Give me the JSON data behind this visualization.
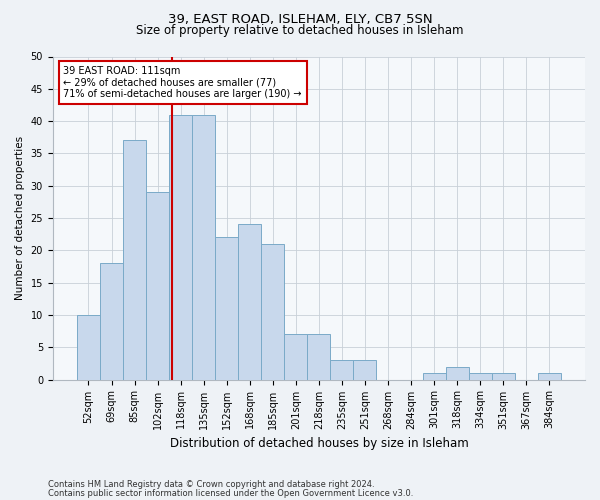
{
  "title1": "39, EAST ROAD, ISLEHAM, ELY, CB7 5SN",
  "title2": "Size of property relative to detached houses in Isleham",
  "xlabel": "Distribution of detached houses by size in Isleham",
  "ylabel": "Number of detached properties",
  "categories": [
    "52sqm",
    "69sqm",
    "85sqm",
    "102sqm",
    "118sqm",
    "135sqm",
    "152sqm",
    "168sqm",
    "185sqm",
    "201sqm",
    "218sqm",
    "235sqm",
    "251sqm",
    "268sqm",
    "284sqm",
    "301sqm",
    "318sqm",
    "334sqm",
    "351sqm",
    "367sqm",
    "384sqm"
  ],
  "values": [
    10,
    18,
    37,
    29,
    41,
    41,
    22,
    24,
    21,
    7,
    7,
    3,
    3,
    0,
    0,
    1,
    2,
    1,
    1,
    0,
    1
  ],
  "bar_color": "#c8d8ec",
  "bar_edge_color": "#7aaac8",
  "bar_width": 1.0,
  "red_line_x": 3.62,
  "red_line_color": "#cc0000",
  "annotation_text": "39 EAST ROAD: 111sqm\n← 29% of detached houses are smaller (77)\n71% of semi-detached houses are larger (190) →",
  "annotation_box_color": "#ffffff",
  "annotation_box_edge": "#cc0000",
  "ylim": [
    0,
    50
  ],
  "yticks": [
    0,
    5,
    10,
    15,
    20,
    25,
    30,
    35,
    40,
    45,
    50
  ],
  "footer1": "Contains HM Land Registry data © Crown copyright and database right 2024.",
  "footer2": "Contains public sector information licensed under the Open Government Licence v3.0.",
  "bg_color": "#eef2f6",
  "plot_bg_color": "#f5f8fb",
  "title1_fontsize": 9.5,
  "title2_fontsize": 8.5,
  "xlabel_fontsize": 8.5,
  "ylabel_fontsize": 7.5,
  "tick_fontsize": 7,
  "annot_fontsize": 7,
  "footer_fontsize": 6
}
